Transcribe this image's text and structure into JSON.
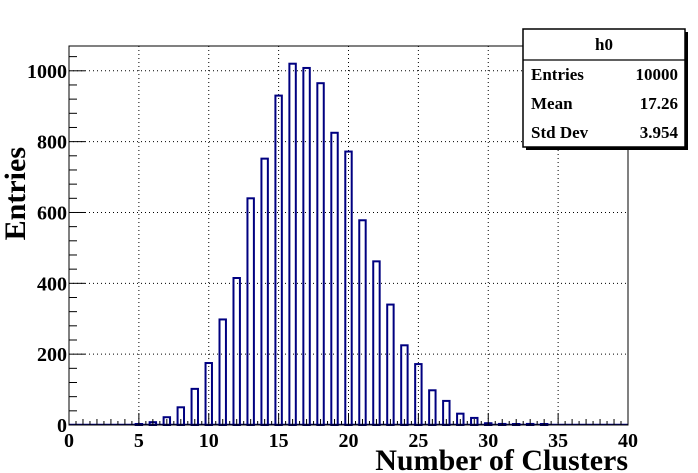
{
  "chart_data": {
    "type": "bar",
    "style": "histogram-outline",
    "xlabel": "Number of Clusters",
    "ylabel": "Entries",
    "xlim": [
      0,
      40
    ],
    "ylim": [
      0,
      1070
    ],
    "x_ticks": [
      0,
      5,
      10,
      15,
      20,
      25,
      30,
      35,
      40
    ],
    "y_ticks": [
      0,
      200,
      400,
      600,
      800,
      1000
    ],
    "grid": true,
    "bar_color": "#000080",
    "bars": [
      {
        "x": 5,
        "y": 2
      },
      {
        "x": 6,
        "y": 8
      },
      {
        "x": 7,
        "y": 22
      },
      {
        "x": 8,
        "y": 50
      },
      {
        "x": 9,
        "y": 102
      },
      {
        "x": 10,
        "y": 175
      },
      {
        "x": 11,
        "y": 298
      },
      {
        "x": 12,
        "y": 415
      },
      {
        "x": 13,
        "y": 640
      },
      {
        "x": 14,
        "y": 752
      },
      {
        "x": 15,
        "y": 930
      },
      {
        "x": 16,
        "y": 1020
      },
      {
        "x": 17,
        "y": 1008
      },
      {
        "x": 18,
        "y": 965
      },
      {
        "x": 19,
        "y": 825
      },
      {
        "x": 20,
        "y": 772
      },
      {
        "x": 21,
        "y": 578
      },
      {
        "x": 22,
        "y": 462
      },
      {
        "x": 23,
        "y": 340
      },
      {
        "x": 24,
        "y": 225
      },
      {
        "x": 25,
        "y": 172
      },
      {
        "x": 26,
        "y": 98
      },
      {
        "x": 27,
        "y": 68
      },
      {
        "x": 28,
        "y": 32
      },
      {
        "x": 29,
        "y": 20
      },
      {
        "x": 30,
        "y": 5
      },
      {
        "x": 31,
        "y": 3
      },
      {
        "x": 32,
        "y": 2
      },
      {
        "x": 33,
        "y": 3
      },
      {
        "x": 34,
        "y": 2
      }
    ],
    "stats_box": {
      "title": "h0",
      "rows": [
        {
          "label": "Entries",
          "value": "10000"
        },
        {
          "label": "Mean",
          "value": "17.26"
        },
        {
          "label": "Std Dev",
          "value": "3.954"
        }
      ]
    }
  }
}
